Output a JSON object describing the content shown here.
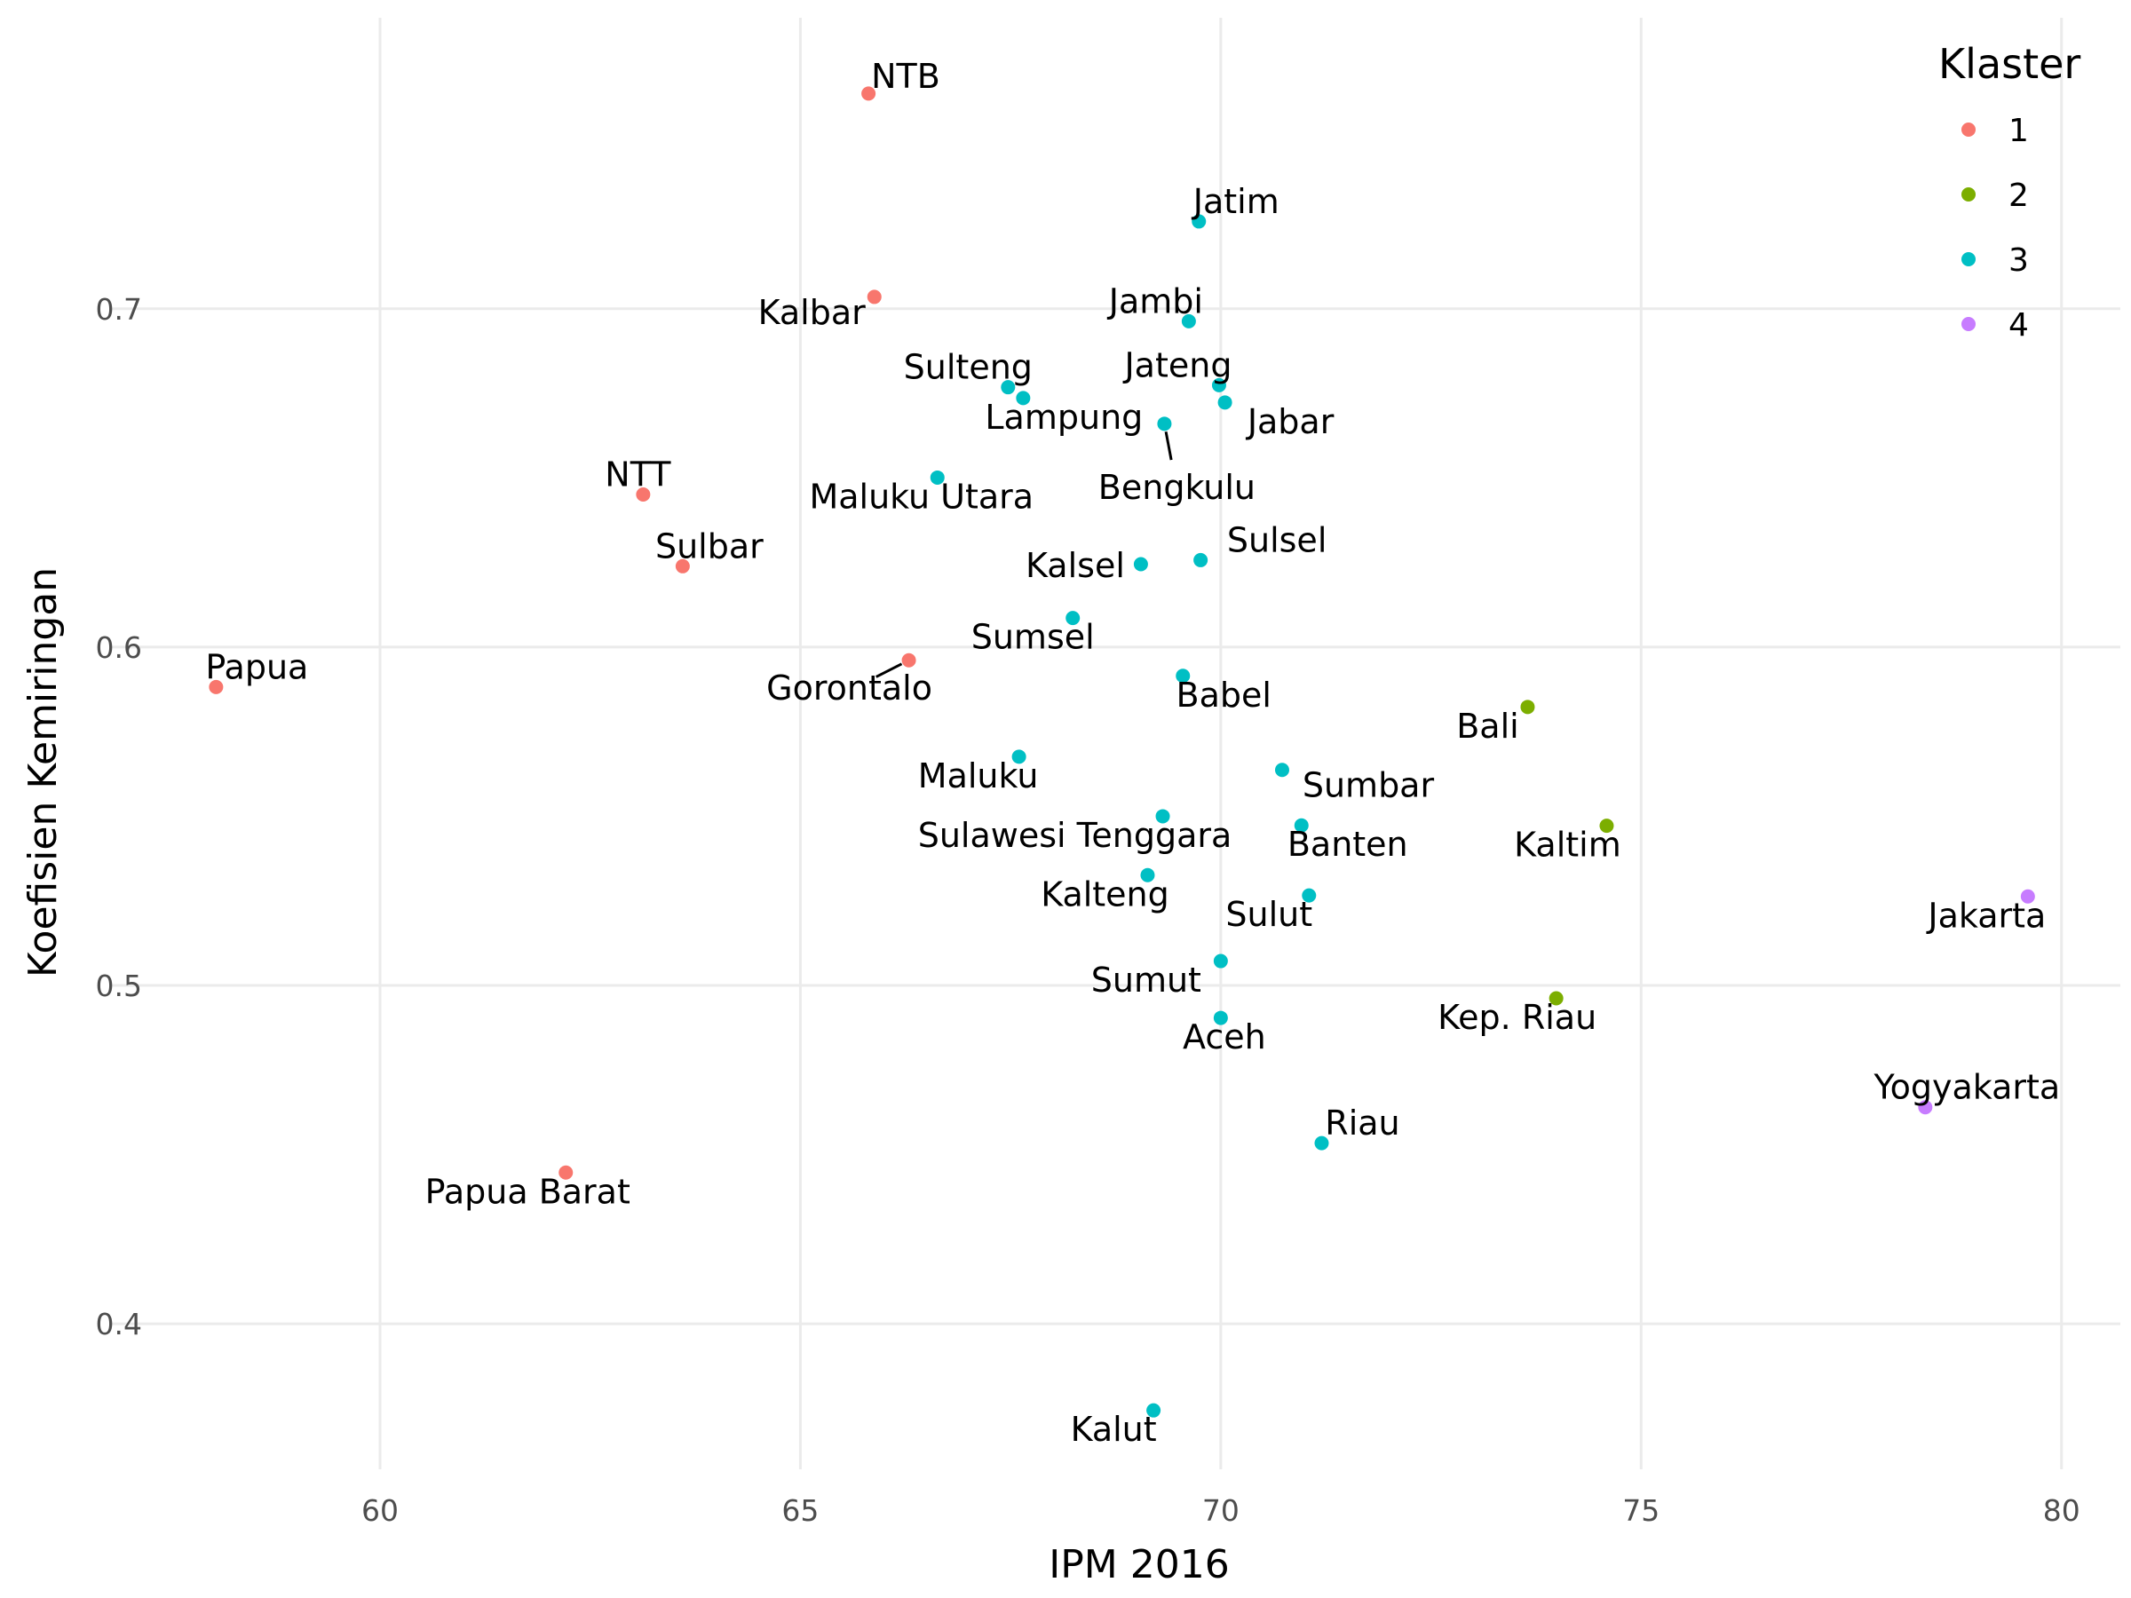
{
  "chart_data": {
    "type": "scatter",
    "xlabel": "IPM 2016",
    "ylabel": "Koefisien Kemiringan",
    "xlim": [
      56.8,
      80.7
    ],
    "ylim": [
      0.357,
      0.786
    ],
    "x_ticks": [
      60,
      65,
      70,
      75,
      80
    ],
    "x_tick_labels": [
      "60",
      "65",
      "70",
      "75",
      "80"
    ],
    "y_ticks": [
      0.4,
      0.5,
      0.6,
      0.7
    ],
    "y_tick_labels": [
      "0.4",
      "0.5",
      "0.6",
      "0.7"
    ],
    "grid": true,
    "legend": {
      "title": "Klaster",
      "position": "top-right",
      "entries": [
        {
          "label": "1",
          "color": "#F8766D"
        },
        {
          "label": "2",
          "color": "#7CAE00"
        },
        {
          "label": "3",
          "color": "#00BFC4"
        },
        {
          "label": "4",
          "color": "#C77CFF"
        }
      ]
    },
    "points": [
      {
        "label": "NTB",
        "x": 65.81,
        "y": 0.7636,
        "cluster": "1",
        "ha": "start",
        "dx": 3,
        "dy": -17
      },
      {
        "label": "Kalbar",
        "x": 65.88,
        "y": 0.7035,
        "cluster": "1",
        "ha": "end",
        "dx": -10,
        "dy": 20
      },
      {
        "label": "NTT",
        "x": 63.13,
        "y": 0.6451,
        "cluster": "1",
        "ha": "middle",
        "dx": -6,
        "dy": -20
      },
      {
        "label": "Sulbar",
        "x": 63.6,
        "y": 0.6239,
        "cluster": "1",
        "ha": "middle",
        "dx": 30,
        "dy": -20
      },
      {
        "label": "Papua",
        "x": 58.05,
        "y": 0.5882,
        "cluster": "1",
        "ha": "middle",
        "dx": 46,
        "dy": -20
      },
      {
        "label": "Gorontalo",
        "x": 66.29,
        "y": 0.5961,
        "cluster": "1",
        "ha": "middle",
        "dx": -67,
        "dy": 34,
        "leader": true
      },
      {
        "label": "Papua Barat",
        "x": 62.21,
        "y": 0.4447,
        "cluster": "1",
        "ha": "middle",
        "dx": -43,
        "dy": 24
      },
      {
        "label": "Bali",
        "x": 73.65,
        "y": 0.5823,
        "cluster": "2",
        "ha": "middle",
        "dx": -45,
        "dy": 24
      },
      {
        "label": "Kaltim",
        "x": 74.59,
        "y": 0.5472,
        "cluster": "2",
        "ha": "middle",
        "dx": -44,
        "dy": 24
      },
      {
        "label": "Kep. Riau",
        "x": 73.99,
        "y": 0.4962,
        "cluster": "2",
        "ha": "middle",
        "dx": -44,
        "dy": 24
      },
      {
        "label": "Jatim",
        "x": 69.74,
        "y": 0.7258,
        "cluster": "3",
        "ha": "middle",
        "dx": 42,
        "dy": -20
      },
      {
        "label": "Jambi",
        "x": 69.62,
        "y": 0.6963,
        "cluster": "3",
        "ha": "middle",
        "dx": -37,
        "dy": -20
      },
      {
        "label": "Sulteng",
        "x": 67.47,
        "y": 0.6768,
        "cluster": "3",
        "ha": "middle",
        "dx": -45,
        "dy": -20
      },
      {
        "label": "Jateng",
        "x": 69.98,
        "y": 0.6774,
        "cluster": "3",
        "ha": "middle",
        "dx": -46,
        "dy": -20
      },
      {
        "label": "Lampung",
        "x": 67.65,
        "y": 0.6736,
        "cluster": "3",
        "ha": "middle",
        "dx": 46,
        "dy": 24
      },
      {
        "label": "Jabar",
        "x": 70.05,
        "y": 0.6723,
        "cluster": "3",
        "ha": "middle",
        "dx": 74,
        "dy": 24
      },
      {
        "label": "Bengkulu",
        "x": 69.33,
        "y": 0.666,
        "cluster": "3",
        "ha": "middle",
        "dx": 14,
        "dy": 74,
        "leader": true
      },
      {
        "label": "Maluku Utara",
        "x": 66.63,
        "y": 0.6501,
        "cluster": "3",
        "ha": "middle",
        "dx": -18,
        "dy": 24
      },
      {
        "label": "Sulsel",
        "x": 69.76,
        "y": 0.6257,
        "cluster": "3",
        "ha": "middle",
        "dx": 86,
        "dy": -20
      },
      {
        "label": "Kalsel",
        "x": 69.05,
        "y": 0.6245,
        "cluster": "3",
        "ha": "end",
        "dx": -18,
        "dy": 4
      },
      {
        "label": "Sumsel",
        "x": 68.24,
        "y": 0.6086,
        "cluster": "3",
        "ha": "middle",
        "dx": -45,
        "dy": 24
      },
      {
        "label": "Babel",
        "x": 69.55,
        "y": 0.5915,
        "cluster": "3",
        "ha": "middle",
        "dx": 46,
        "dy": 24
      },
      {
        "label": "Maluku",
        "x": 67.6,
        "y": 0.5676,
        "cluster": "3",
        "ha": "middle",
        "dx": -46,
        "dy": 24
      },
      {
        "label": "Sumbar",
        "x": 70.73,
        "y": 0.5637,
        "cluster": "3",
        "ha": "middle",
        "dx": 97,
        "dy": 20
      },
      {
        "label": "Sulawesi Tenggara",
        "x": 69.31,
        "y": 0.55,
        "cluster": "3",
        "ha": "middle",
        "dx": -99,
        "dy": 24
      },
      {
        "label": "Banten",
        "x": 70.96,
        "y": 0.5473,
        "cluster": "3",
        "ha": "middle",
        "dx": 52,
        "dy": 24
      },
      {
        "label": "Kalteng",
        "x": 69.13,
        "y": 0.5326,
        "cluster": "3",
        "ha": "middle",
        "dx": -48,
        "dy": 24
      },
      {
        "label": "Sulut",
        "x": 71.05,
        "y": 0.5266,
        "cluster": "3",
        "ha": "middle",
        "dx": -45,
        "dy": 24
      },
      {
        "label": "Sumut",
        "x": 70.0,
        "y": 0.5072,
        "cluster": "3",
        "ha": "middle",
        "dx": -84,
        "dy": 24
      },
      {
        "label": "Aceh",
        "x": 70.0,
        "y": 0.4904,
        "cluster": "3",
        "ha": "middle",
        "dx": 4,
        "dy": 24
      },
      {
        "label": "Riau",
        "x": 71.2,
        "y": 0.4534,
        "cluster": "3",
        "ha": "middle",
        "dx": 46,
        "dy": -20
      },
      {
        "label": "Kalut",
        "x": 69.2,
        "y": 0.3744,
        "cluster": "3",
        "ha": "middle",
        "dx": -45,
        "dy": 24
      },
      {
        "label": "Jakarta",
        "x": 79.6,
        "y": 0.5263,
        "cluster": "4",
        "ha": "middle",
        "dx": -46,
        "dy": 24
      },
      {
        "label": "Yogyakarta",
        "x": 78.38,
        "y": 0.464,
        "cluster": "4",
        "ha": "middle",
        "dx": 47,
        "dy": -20
      }
    ]
  }
}
